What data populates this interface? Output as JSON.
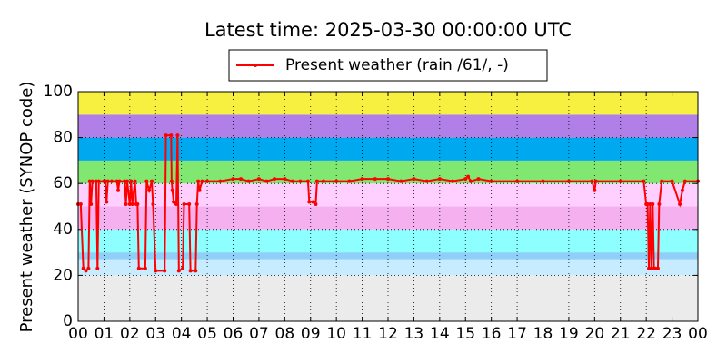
{
  "chart_data": {
    "type": "line",
    "title": "Latest time: 2025-03-30 00:00:00 UTC",
    "y_label": "Present weather (SYNOP code)",
    "xlim": [
      0,
      24
    ],
    "ylim": [
      0,
      100
    ],
    "xticks": [
      {
        "value": 0,
        "label": "00"
      },
      {
        "value": 1,
        "label": "01"
      },
      {
        "value": 2,
        "label": "02"
      },
      {
        "value": 3,
        "label": "03"
      },
      {
        "value": 4,
        "label": "04"
      },
      {
        "value": 5,
        "label": "05"
      },
      {
        "value": 6,
        "label": "06"
      },
      {
        "value": 7,
        "label": "07"
      },
      {
        "value": 8,
        "label": "08"
      },
      {
        "value": 9,
        "label": "09"
      },
      {
        "value": 10,
        "label": "10"
      },
      {
        "value": 11,
        "label": "11"
      },
      {
        "value": 12,
        "label": "12"
      },
      {
        "value": 13,
        "label": "13"
      },
      {
        "value": 14,
        "label": "14"
      },
      {
        "value": 15,
        "label": "15"
      },
      {
        "value": 16,
        "label": "16"
      },
      {
        "value": 17,
        "label": "17"
      },
      {
        "value": 18,
        "label": "18"
      },
      {
        "value": 19,
        "label": "19"
      },
      {
        "value": 20,
        "label": "20"
      },
      {
        "value": 21,
        "label": "21"
      },
      {
        "value": 22,
        "label": "22"
      },
      {
        "value": 23,
        "label": "23"
      },
      {
        "value": 24,
        "label": "00"
      }
    ],
    "yticks": [
      0,
      20,
      40,
      60,
      80,
      100
    ],
    "grid": true,
    "legend": "top",
    "bands": [
      {
        "from": 0,
        "to": 20,
        "color": "#ebebeb"
      },
      {
        "from": 20,
        "to": 27,
        "color": "#c8ecff"
      },
      {
        "from": 27,
        "to": 30,
        "color": "#90d0f8"
      },
      {
        "from": 30,
        "to": 40,
        "color": "#8effff"
      },
      {
        "from": 40,
        "to": 50,
        "color": "#f5b0f0"
      },
      {
        "from": 50,
        "to": 60,
        "color": "#ffd0ff"
      },
      {
        "from": 60,
        "to": 70,
        "color": "#80e870"
      },
      {
        "from": 70,
        "to": 80,
        "color": "#00a8f0"
      },
      {
        "from": 80,
        "to": 90,
        "color": "#b080e8"
      },
      {
        "from": 90,
        "to": 100,
        "color": "#f8f040"
      }
    ],
    "x": [
      0,
      0.1,
      0.2,
      0.3,
      0.4,
      0.45,
      0.5,
      0.55,
      0.7,
      0.75,
      0.8,
      1.0,
      1.05,
      1.1,
      1.15,
      1.3,
      1.5,
      1.55,
      1.6,
      1.8,
      1.85,
      1.9,
      2.0,
      2.05,
      2.1,
      2.2,
      2.25,
      2.3,
      2.35,
      2.6,
      2.65,
      2.75,
      2.85,
      2.9,
      3.0,
      3.35,
      3.4,
      3.6,
      3.62,
      3.65,
      3.7,
      3.8,
      3.85,
      3.9,
      4.05,
      4.1,
      4.3,
      4.35,
      4.55,
      4.6,
      4.65,
      4.7,
      4.8,
      5.0,
      5.5,
      6.0,
      6.3,
      6.6,
      7.0,
      7.3,
      7.6,
      8.0,
      8.3,
      8.6,
      8.9,
      8.95,
      9.1,
      9.2,
      9.25,
      9.5,
      10.0,
      10.5,
      11.0,
      11.5,
      12.0,
      12.5,
      13.0,
      13.5,
      14.0,
      14.5,
      15.0,
      15.1,
      15.2,
      15.5,
      16.0,
      17.0,
      18.0,
      19.0,
      19.9,
      20.0,
      20.05,
      21.0,
      21.9,
      22.0,
      22.05,
      22.1,
      22.15,
      22.2,
      22.25,
      22.3,
      22.35,
      22.45,
      22.5,
      22.6,
      23.0,
      23.3,
      23.4,
      23.5,
      24.0
    ],
    "series": [
      {
        "name": "Present weather (rain /61/, -)",
        "color": "#ff0000",
        "values": [
          51,
          51,
          23,
          22,
          23,
          61,
          51,
          61,
          61,
          23,
          61,
          61,
          61,
          52,
          61,
          61,
          61,
          57,
          61,
          61,
          51,
          61,
          51,
          61,
          51,
          61,
          51,
          51,
          23,
          23,
          61,
          57,
          61,
          51,
          22,
          22,
          81,
          81,
          61,
          57,
          52,
          51,
          81,
          22,
          23,
          51,
          51,
          22,
          22,
          51,
          61,
          57,
          61,
          61,
          61,
          62,
          62,
          61,
          62,
          61,
          62,
          62,
          61,
          61,
          61,
          52,
          52,
          51,
          61,
          61,
          61,
          61,
          62,
          62,
          62,
          61,
          62,
          61,
          62,
          61,
          62,
          63,
          61,
          62,
          61,
          61,
          61,
          61,
          61,
          57,
          61,
          61,
          61,
          51,
          51,
          23,
          51,
          23,
          51,
          23,
          23,
          23,
          51,
          61,
          61,
          51,
          57,
          61,
          61
        ]
      }
    ]
  }
}
